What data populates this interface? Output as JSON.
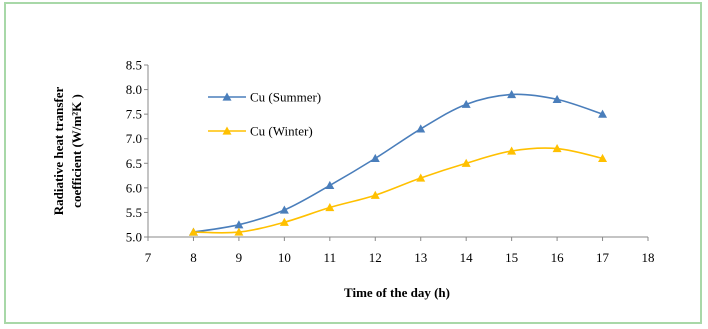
{
  "chart_data": {
    "type": "line",
    "x": [
      8,
      9,
      10,
      11,
      12,
      13,
      14,
      15,
      16,
      17
    ],
    "series": [
      {
        "name": "Cu (Summer)",
        "color": "#4a7ebb",
        "values": [
          5.1,
          5.25,
          5.55,
          6.05,
          6.6,
          7.2,
          7.7,
          7.9,
          7.8,
          7.5
        ]
      },
      {
        "name": "Cu (Winter)",
        "color": "#ffc000",
        "values": [
          5.1,
          5.1,
          5.3,
          5.6,
          5.85,
          6.2,
          6.5,
          6.75,
          6.8,
          6.6
        ]
      }
    ],
    "title": "",
    "xlabel": "Time of the day (h)",
    "ylabel_line1": "Radiative heat transfer",
    "ylabel_line2": "coefficient    (W/m²K )",
    "xlim": [
      7,
      18
    ],
    "ylim": [
      5.0,
      8.5
    ],
    "xticks": [
      "7",
      "8",
      "9",
      "10",
      "11",
      "12",
      "13",
      "14",
      "15",
      "16",
      "17",
      "18"
    ],
    "yticks": [
      "5.0",
      "5.5",
      "6.0",
      "6.5",
      "7.0",
      "7.5",
      "8.0",
      "8.5"
    ],
    "grid": false,
    "legend_position": "upper-left-inside",
    "marker": "triangle"
  }
}
